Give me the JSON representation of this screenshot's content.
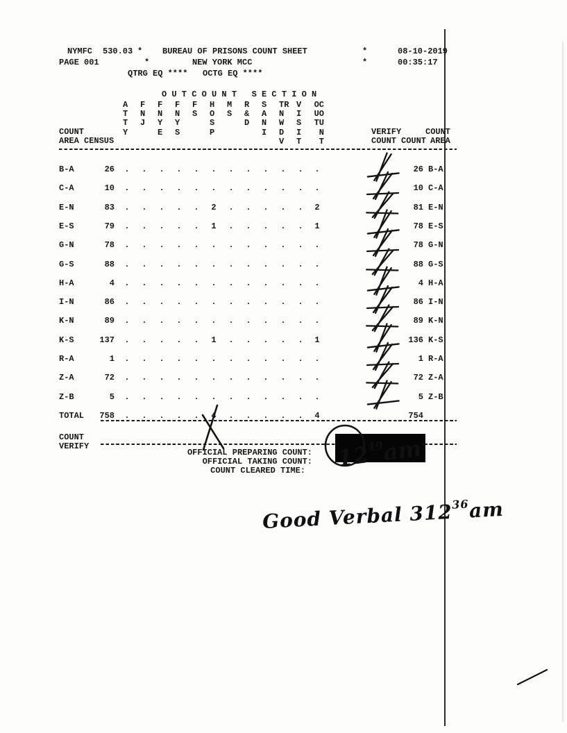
{
  "header": {
    "form_code": "NYMFC",
    "form_number": "530.03",
    "page_label": "PAGE 001",
    "star1": "*",
    "star2": "*",
    "star3": "*",
    "star4": "*",
    "title": "BUREAU OF PRISONS COUNT SHEET",
    "facility": "NEW YORK MCC",
    "date": "08-10-2019",
    "time": "00:35:17",
    "qtrg_label": "QTRG EQ ****",
    "octg_label": "OCTG EQ ****"
  },
  "table": {
    "section_title": "O U T C O U N T   S E C T I O N",
    "left_header": {
      "count": "COUNT",
      "area": "AREA",
      "census": "CENSUS"
    },
    "right_header": {
      "verify_line1": "VERIFY",
      "verify_line2": "COUNT",
      "count": "COUNT",
      "area_line1": "COUNT",
      "area_line2": "AREA"
    },
    "outcount_columns": [
      [
        "A",
        "T",
        "T",
        "Y"
      ],
      [
        "F",
        "N",
        "J"
      ],
      [
        "F",
        "N",
        "Y",
        "E"
      ],
      [
        "F",
        "N",
        "Y",
        "S"
      ],
      [
        "F",
        "S"
      ],
      [
        "H",
        "O",
        "S",
        "P"
      ],
      [
        "M",
        "S"
      ],
      [
        "R",
        "&",
        "D"
      ],
      [
        "S",
        "A",
        "N",
        "I"
      ],
      [
        "TR",
        "N",
        "W",
        "D",
        "V"
      ],
      [
        "V",
        "I",
        "S",
        "I",
        "T"
      ],
      [
        "OC",
        "UO",
        "TU",
        "N",
        "T"
      ]
    ],
    "rows": [
      {
        "area": "B-A",
        "census": "26",
        "marks": [
          ".",
          ".",
          ".",
          ".",
          ".",
          ".",
          ".",
          ".",
          ".",
          ".",
          ".",
          "."
        ],
        "verified": true,
        "count": "26",
        "area2": "B-A"
      },
      {
        "area": "C-A",
        "census": "10",
        "marks": [
          ".",
          ".",
          ".",
          ".",
          ".",
          ".",
          ".",
          ".",
          ".",
          ".",
          ".",
          "."
        ],
        "verified": true,
        "count": "10",
        "area2": "C-A"
      },
      {
        "area": "E-N",
        "census": "83",
        "marks": [
          ".",
          ".",
          ".",
          ".",
          ".",
          "2",
          ".",
          ".",
          ".",
          ".",
          ".",
          "2"
        ],
        "verified": true,
        "count": "81",
        "area2": "E-N"
      },
      {
        "area": "E-S",
        "census": "79",
        "marks": [
          ".",
          ".",
          ".",
          ".",
          ".",
          "1",
          ".",
          ".",
          ".",
          ".",
          ".",
          "1"
        ],
        "verified": true,
        "count": "78",
        "area2": "E-S"
      },
      {
        "area": "G-N",
        "census": "78",
        "marks": [
          ".",
          ".",
          ".",
          ".",
          ".",
          ".",
          ".",
          ".",
          ".",
          ".",
          ".",
          "."
        ],
        "verified": true,
        "count": "78",
        "area2": "G-N"
      },
      {
        "area": "G-S",
        "census": "88",
        "marks": [
          ".",
          ".",
          ".",
          ".",
          ".",
          ".",
          ".",
          ".",
          ".",
          ".",
          ".",
          "."
        ],
        "verified": true,
        "count": "88",
        "area2": "G-S"
      },
      {
        "area": "H-A",
        "census": "4",
        "marks": [
          ".",
          ".",
          ".",
          ".",
          ".",
          ".",
          ".",
          ".",
          ".",
          ".",
          ".",
          "."
        ],
        "verified": true,
        "count": "4",
        "area2": "H-A"
      },
      {
        "area": "I-N",
        "census": "86",
        "marks": [
          ".",
          ".",
          ".",
          ".",
          ".",
          ".",
          ".",
          ".",
          ".",
          ".",
          ".",
          "."
        ],
        "verified": true,
        "count": "86",
        "area2": "I-N"
      },
      {
        "area": "K-N",
        "census": "89",
        "marks": [
          ".",
          ".",
          ".",
          ".",
          ".",
          ".",
          ".",
          ".",
          ".",
          ".",
          ".",
          "."
        ],
        "verified": true,
        "count": "89",
        "area2": "K-N"
      },
      {
        "area": "K-S",
        "census": "137",
        "marks": [
          ".",
          ".",
          ".",
          ".",
          ".",
          "1",
          ".",
          ".",
          ".",
          ".",
          ".",
          "1"
        ],
        "verified": true,
        "count": "136",
        "area2": "K-S"
      },
      {
        "area": "R-A",
        "census": "1",
        "marks": [
          ".",
          ".",
          ".",
          ".",
          ".",
          ".",
          ".",
          ".",
          ".",
          ".",
          ".",
          "."
        ],
        "verified": true,
        "count": "1",
        "area2": "R-A"
      },
      {
        "area": "Z-A",
        "census": "72",
        "marks": [
          ".",
          ".",
          ".",
          ".",
          ".",
          ".",
          ".",
          ".",
          ".",
          ".",
          ".",
          "."
        ],
        "verified": true,
        "count": "72",
        "area2": "Z-A"
      },
      {
        "area": "Z-B",
        "census": "5",
        "marks": [
          ".",
          ".",
          ".",
          ".",
          ".",
          ".",
          ".",
          ".",
          ".",
          ".",
          ".",
          "."
        ],
        "verified": true,
        "count": "5",
        "area2": "Z-B"
      },
      {
        "area": "TOTAL",
        "census": "758",
        "marks": [
          ".",
          ".",
          ".",
          ".",
          ".",
          "4",
          ".",
          ".",
          ".",
          ".",
          ".",
          "4"
        ],
        "verified": false,
        "count": "754",
        "area2": ""
      }
    ]
  },
  "footer": {
    "count_verify_line1": "COUNT",
    "count_verify_line2": "VERIFY",
    "preparing_label": "OFFICIAL PREPARING COUNT:",
    "taking_label": "OFFICIAL TAKING COUNT:",
    "cleared_label": "COUNT CLEARED TIME:",
    "handwritten_time": {
      "main": "12",
      "sup": "49",
      "tail": "am"
    },
    "handwritten_note": {
      "main": "Good Verbal 312",
      "sup": "36",
      "tail": "am"
    }
  }
}
